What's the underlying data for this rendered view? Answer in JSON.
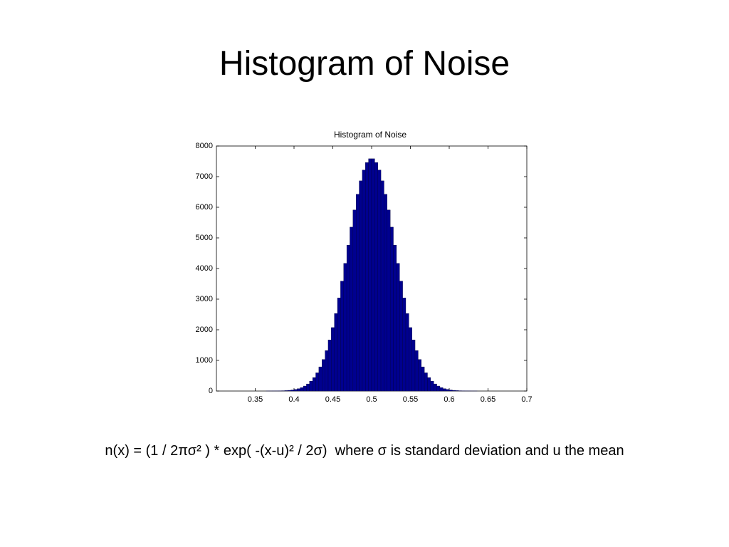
{
  "header": {
    "title": "Histogram of Noise"
  },
  "chart_data": {
    "type": "histogram",
    "title": "Histogram of Noise",
    "bins": [
      0.34,
      0.344,
      0.348,
      0.352,
      0.356,
      0.36,
      0.364,
      0.368,
      0.372,
      0.376,
      0.38,
      0.384,
      0.388,
      0.392,
      0.396,
      0.4,
      0.404,
      0.408,
      0.412,
      0.416,
      0.42,
      0.424,
      0.428,
      0.432,
      0.436,
      0.44,
      0.444,
      0.448,
      0.452,
      0.456,
      0.46,
      0.464,
      0.468,
      0.472,
      0.476,
      0.48,
      0.484,
      0.488,
      0.492,
      0.496,
      0.5,
      0.504,
      0.508,
      0.512,
      0.516,
      0.52,
      0.524,
      0.528,
      0.532,
      0.536,
      0.54,
      0.544,
      0.548,
      0.552,
      0.556,
      0.56,
      0.564,
      0.568,
      0.572,
      0.576,
      0.58,
      0.584,
      0.588,
      0.592,
      0.596,
      0.6,
      0.604,
      0.608,
      0.612,
      0.616,
      0.62,
      0.624,
      0.628,
      0.632,
      0.636,
      0.64,
      0.644,
      0.648,
      0.652,
      0.656,
      0.66
    ],
    "values": [
      0,
      0,
      0,
      0,
      0,
      0,
      1,
      1,
      2,
      3,
      5,
      9,
      14,
      22,
      34,
      51,
      76,
      112,
      162,
      230,
      321,
      440,
      594,
      788,
      1029,
      1321,
      1668,
      2072,
      2531,
      3038,
      3587,
      4167,
      4762,
      5351,
      5911,
      6423,
      6863,
      7215,
      7459,
      7584,
      7584,
      7459,
      7215,
      6863,
      6423,
      5911,
      5351,
      4762,
      4167,
      3587,
      3038,
      2531,
      2072,
      1668,
      1321,
      1029,
      788,
      594,
      440,
      321,
      230,
      162,
      112,
      76,
      51,
      34,
      22,
      14,
      9,
      5,
      3,
      2,
      1,
      1,
      0,
      0,
      0,
      0,
      0,
      0
    ],
    "color": "#00008f",
    "xlim": [
      0.3,
      0.7
    ],
    "ylim": [
      0,
      8000
    ],
    "xticks": [
      0.35,
      0.4,
      0.45,
      0.5,
      0.55,
      0.6,
      0.65,
      0.7
    ],
    "yticks": [
      0,
      1000,
      2000,
      3000,
      4000,
      5000,
      6000,
      7000,
      8000
    ]
  },
  "caption": "n(x) = (1 / 2πσ² ) * exp( -(x-u)² / 2σ)  where σ is standard deviation and u the mean"
}
